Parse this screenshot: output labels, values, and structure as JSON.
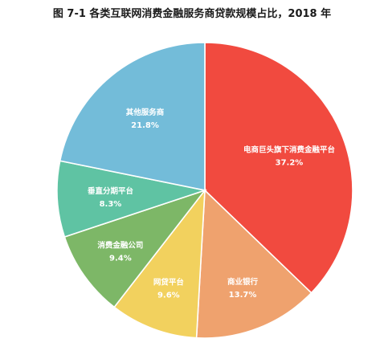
{
  "title": "图 7-1 各类互联网消费金融服务商贷款规模占比，2018 年",
  "chart_data": {
    "type": "pie",
    "slices": [
      {
        "label": "电商巨头旗下消费金融平台",
        "value": 37.2,
        "value_text": "37.2%",
        "color": "#F14A3F"
      },
      {
        "label": "商业银行",
        "value": 13.7,
        "value_text": "13.7%",
        "color": "#EFA26E"
      },
      {
        "label": "网贷平台",
        "value": 9.6,
        "value_text": "9.6%",
        "color": "#F2D15E"
      },
      {
        "label": "消费金融公司",
        "value": 9.4,
        "value_text": "9.4%",
        "color": "#7DB767"
      },
      {
        "label": "垂直分期平台",
        "value": 8.3,
        "value_text": "8.3%",
        "color": "#5FC3A3"
      },
      {
        "label": "其他服务商",
        "value": 21.8,
        "value_text": "21.8%",
        "color": "#73BCD9"
      }
    ],
    "start": "12 o'clock",
    "direction": "clockwise",
    "legend": "none"
  }
}
